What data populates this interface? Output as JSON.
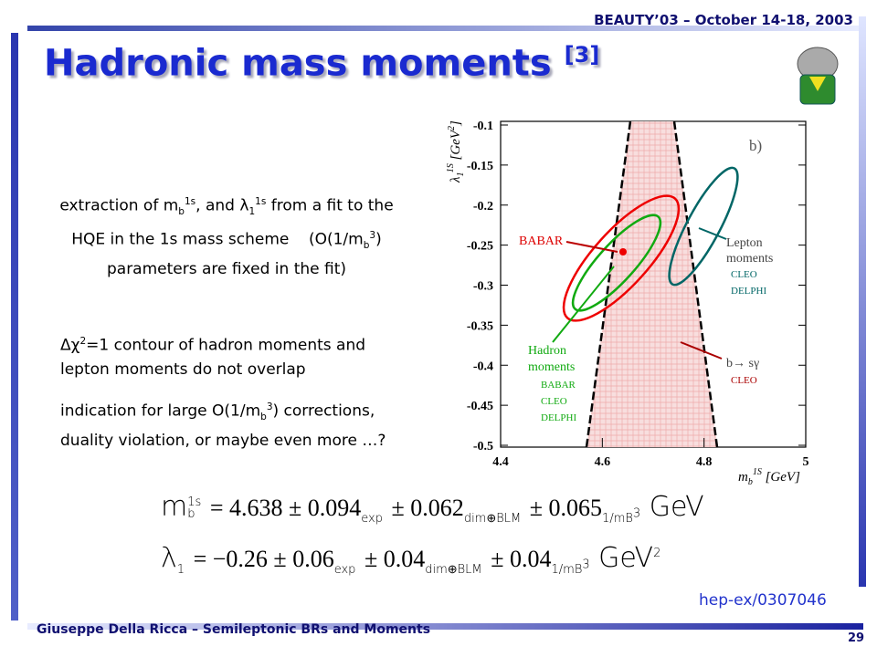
{
  "header": {
    "conference": "BEAUTY’03 – October 14-18, 2003"
  },
  "title": {
    "text": "Hadronic mass moments",
    "ref": "[3]"
  },
  "intro": [
    "extraction of m",
    "b",
    "1s",
    ", and ",
    "λ",
    "1",
    "1s",
    " from a fit to the",
    "HQE in the 1s mass scheme    (O(1/m",
    "b",
    "3",
    ")",
    "parameters are fixed in the fit)"
  ],
  "notes": [
    [
      "Δχ",
      "2",
      "=1 contour of hadron moments and",
      "lepton moments do not overlap"
    ],
    [
      "indication for large O(1/m",
      "b",
      "3",
      ") corrections,",
      "duality violation, or maybe even more …?"
    ]
  ],
  "figure": {
    "panel": "b)",
    "xlim": [
      4.4,
      5
    ],
    "xticks": [
      4.4,
      4.6,
      4.8,
      5
    ],
    "ylim": [
      -0.5,
      -0.1
    ],
    "yticks": [
      -0.1,
      -0.15,
      -0.2,
      -0.25,
      -0.3,
      -0.35,
      -0.4,
      -0.45,
      -0.5
    ],
    "xlabel": [
      "m",
      "b",
      "1S",
      " [GeV]"
    ],
    "ylabel": [
      "λ",
      "1",
      "1S",
      " [GeV",
      "2",
      "]"
    ],
    "labels": {
      "babar": "BABAR",
      "lepton": [
        "Lepton",
        "moments",
        "CLEO",
        "DELPHI"
      ],
      "hadron": [
        "Hadron",
        "moments",
        "BABAR",
        "CLEO",
        "DELPHI"
      ],
      "bsg": [
        "b→ sγ",
        "CLEO"
      ]
    }
  },
  "formulas": [
    [
      "m",
      "1s",
      "b",
      "= 4.638 ± 0.094",
      "exp",
      "± 0.062",
      "dim⊕BLM",
      "± 0.065",
      "1/m",
      "B",
      "3",
      "GeV"
    ],
    [
      "λ",
      "1",
      "= −0.26 ± 0.06",
      "exp",
      "± 0.04",
      "dim⊕BLM",
      "± 0.04",
      "1/m",
      "B",
      "3",
      "GeV",
      "2"
    ]
  ],
  "reference": "hep-ex/0307046",
  "footer": {
    "author": "Giuseppe Della Ricca – Semileptonic BRs and Moments",
    "page": "29"
  }
}
